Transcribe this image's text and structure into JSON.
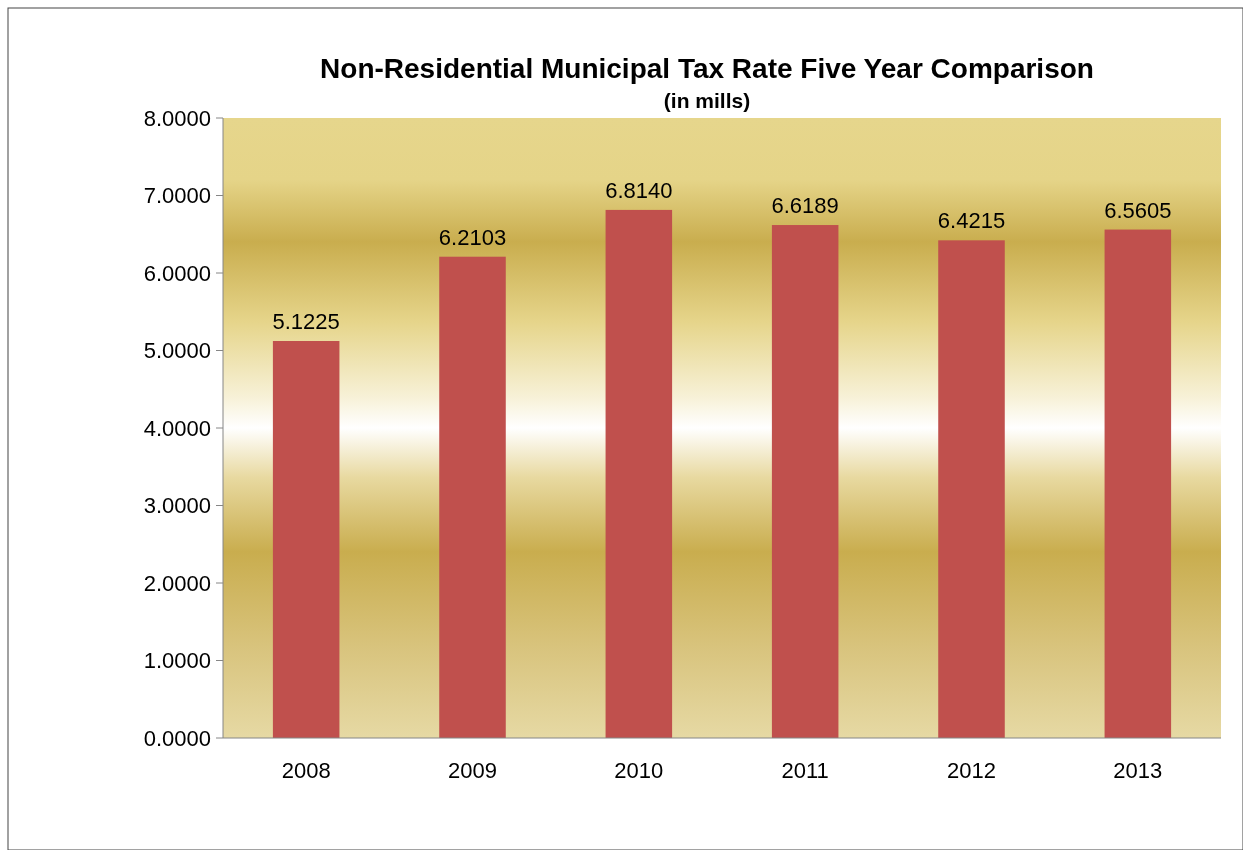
{
  "chart_data": {
    "type": "bar",
    "title": "Non-Residential Municipal Tax Rate Five Year Comparison",
    "subtitle": "(in mills)",
    "categories": [
      "2008",
      "2009",
      "2010",
      "2011",
      "2012",
      "2013"
    ],
    "values": [
      5.1225,
      6.2103,
      6.814,
      6.6189,
      6.4215,
      6.5605
    ],
    "value_labels": [
      "5.1225",
      "6.2103",
      "6.8140",
      "6.6189",
      "6.4215",
      "6.5605"
    ],
    "color": "#c0504d",
    "ylim": [
      0,
      8
    ],
    "yticks": [
      {
        "value": 0,
        "label": "0.0000"
      },
      {
        "value": 1,
        "label": "1.0000"
      },
      {
        "value": 2,
        "label": "2.0000"
      },
      {
        "value": 3,
        "label": "3.0000"
      },
      {
        "value": 4,
        "label": "4.0000"
      },
      {
        "value": 5,
        "label": "5.0000"
      },
      {
        "value": 6,
        "label": "6.0000"
      },
      {
        "value": 7,
        "label": "7.0000"
      },
      {
        "value": 8,
        "label": "8.0000"
      }
    ],
    "grid": false
  }
}
